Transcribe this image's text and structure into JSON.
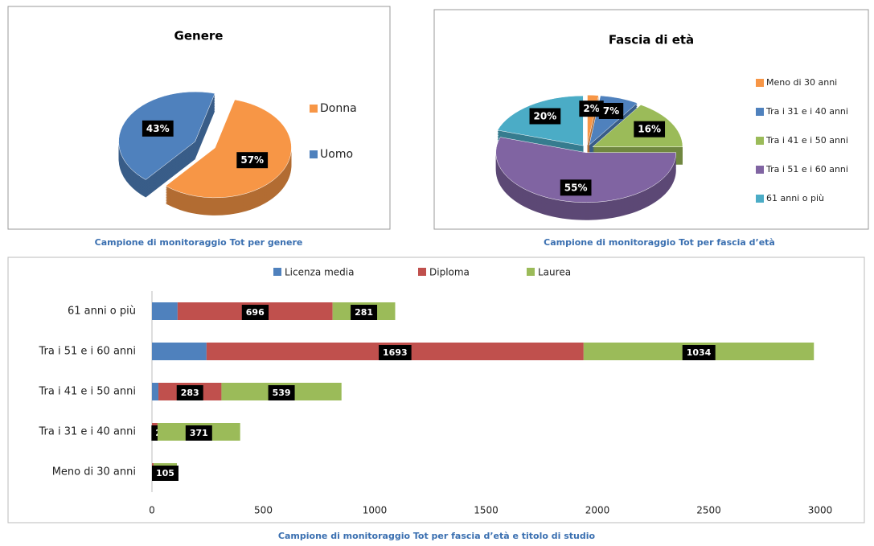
{
  "chart_data": [
    {
      "type": "pie",
      "title": "Genere",
      "caption": "Campione di monitoraggio Tot per genere",
      "categories": [
        "Donna",
        "Uomo"
      ],
      "values": [
        57,
        43
      ],
      "value_labels": [
        "57%",
        "43%"
      ],
      "colors": [
        "#f79646",
        "#4f81bd"
      ],
      "legend": "right"
    },
    {
      "type": "pie",
      "title": "Fascia di età",
      "caption": "Campione di monitoraggio Tot per fascia d’età",
      "categories": [
        "Meno di 30 anni",
        "Tra i 31 e i 40 anni",
        "Tra i 41 e i 50 anni",
        "Tra i 51 e i 60 anni",
        "61 anni o più"
      ],
      "values": [
        2,
        7,
        16,
        55,
        20
      ],
      "value_labels": [
        "2%",
        "7%",
        "16%",
        "55%",
        "20%"
      ],
      "colors": [
        "#f79646",
        "#4f81bd",
        "#9bbb59",
        "#8064a2",
        "#4bacc6"
      ],
      "legend": "right"
    },
    {
      "type": "stacked_barh",
      "caption": "Campione di monitoraggio Tot per fascia d’età e titolo di studio",
      "categories": [
        "Meno di 30 anni",
        "Tra i 31 e i 40 anni",
        "Tra i 41 e i 50 anni",
        "Tra i 51 e i 60 anni",
        "61 anni o più"
      ],
      "series": [
        {
          "name": "Licenza media",
          "color": "#4f81bd",
          "values": [
            0,
            0,
            29,
            245,
            115
          ],
          "data_labels": false
        },
        {
          "name": "Diploma",
          "color": "#c0504d",
          "values": [
            7,
            25,
            283,
            1693,
            696
          ],
          "data_labels": true
        },
        {
          "name": "Laurea",
          "color": "#9bbb59",
          "values": [
            105,
            371,
            539,
            1034,
            281
          ],
          "data_labels": true
        }
      ],
      "xlim": [
        0,
        3000
      ],
      "xticks": [
        0,
        500,
        1000,
        1500,
        2000,
        2500,
        3000
      ],
      "legend": "top"
    }
  ]
}
